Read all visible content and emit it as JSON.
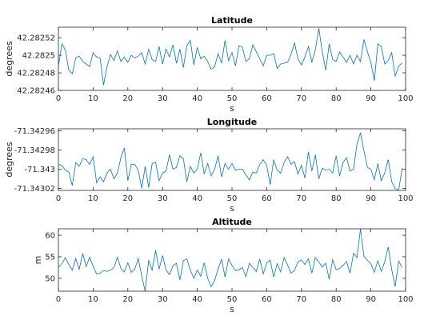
{
  "chart_data": [
    {
      "type": "line",
      "title": "Latitude",
      "xlabel": "s",
      "ylabel": "degrees",
      "xlim": [
        0,
        100
      ],
      "ylim": [
        42.28246,
        42.282532
      ],
      "xticks": [
        0,
        10,
        20,
        30,
        40,
        50,
        60,
        70,
        80,
        90,
        100
      ],
      "xtick_labels": [
        "0",
        "10",
        "20",
        "30",
        "40",
        "50",
        "60",
        "70",
        "80",
        "90",
        "100"
      ],
      "yticks": [
        42.28246,
        42.28248,
        42.2825,
        42.28252
      ],
      "ytick_labels": [
        "42.28246",
        "42.28248",
        "42.2825",
        "42.28252"
      ],
      "grid": false,
      "x": [
        0,
        1,
        2,
        3,
        4,
        5,
        6,
        7,
        8,
        9,
        10,
        11,
        12,
        13,
        14,
        15,
        16,
        17,
        18,
        19,
        20,
        21,
        22,
        23,
        24,
        25,
        26,
        27,
        28,
        29,
        30,
        31,
        32,
        33,
        34,
        35,
        36,
        37,
        38,
        39,
        40,
        41,
        42,
        43,
        44,
        45,
        46,
        47,
        48,
        49,
        50,
        51,
        52,
        53,
        54,
        55,
        56,
        57,
        58,
        59,
        60,
        61,
        62,
        63,
        64,
        65,
        66,
        67,
        68,
        69,
        70,
        71,
        72,
        73,
        74,
        75,
        76,
        77,
        78,
        79,
        80,
        81,
        82,
        83,
        84,
        85,
        86,
        87,
        88,
        89,
        90,
        91,
        92,
        93,
        94,
        95,
        96,
        97,
        98,
        99
      ],
      "series": [
        {
          "color": "#0072BD",
          "values": [
            42.282487,
            42.282513,
            42.282506,
            42.282483,
            42.282479,
            42.282497,
            42.282499,
            42.282493,
            42.28249,
            42.282487,
            42.282503,
            42.282498,
            42.282497,
            42.282466,
            42.282487,
            42.282501,
            42.282494,
            42.282505,
            42.282493,
            42.282498,
            42.282492,
            42.2825,
            42.282497,
            42.282499,
            42.282503,
            42.28249,
            42.282507,
            42.282495,
            42.282493,
            42.28251,
            42.28249,
            42.282507,
            42.282498,
            42.282512,
            42.282491,
            42.282507,
            42.282486,
            42.282511,
            42.282517,
            42.282489,
            42.282509,
            42.282496,
            42.282499,
            42.282493,
            42.282484,
            42.282487,
            42.282502,
            42.282491,
            42.282517,
            42.282494,
            42.282503,
            42.282488,
            42.282511,
            42.282509,
            42.282493,
            42.282496,
            42.282512,
            42.282504,
            42.282496,
            42.282488,
            42.2825,
            42.2825,
            42.282502,
            42.282485,
            42.28249,
            42.282491,
            42.282492,
            42.282501,
            42.282514,
            42.282496,
            42.282489,
            42.282498,
            42.28251,
            42.282492,
            42.282506,
            42.282531,
            42.282504,
            42.282483,
            42.282513,
            42.282495,
            42.282493,
            42.282504,
            42.282498,
            42.282492,
            42.2825,
            42.28249,
            42.2825,
            42.282493,
            42.282518,
            42.282504,
            42.282492,
            42.282471,
            42.282513,
            42.28251,
            42.28249,
            42.282494,
            42.282503,
            42.282476,
            42.282488,
            42.282491
          ]
        }
      ]
    },
    {
      "type": "line",
      "title": "Longitude",
      "xlabel": "s",
      "ylabel": "degrees",
      "xlim": [
        0,
        100
      ],
      "ylim": [
        -71.343022,
        -71.342958
      ],
      "xticks": [
        0,
        10,
        20,
        30,
        40,
        50,
        60,
        70,
        80,
        90,
        100
      ],
      "xtick_labels": [
        "0",
        "10",
        "20",
        "30",
        "40",
        "50",
        "60",
        "70",
        "80",
        "90",
        "100"
      ],
      "yticks": [
        -71.34302,
        -71.343,
        -71.34298,
        -71.34296
      ],
      "ytick_labels": [
        "-71.34302",
        "-71.343",
        "-71.34298",
        "-71.34296"
      ],
      "grid": false,
      "x": [
        0,
        1,
        2,
        3,
        4,
        5,
        6,
        7,
        8,
        9,
        10,
        11,
        12,
        13,
        14,
        15,
        16,
        17,
        18,
        19,
        20,
        21,
        22,
        23,
        24,
        25,
        26,
        27,
        28,
        29,
        30,
        31,
        32,
        33,
        34,
        35,
        36,
        37,
        38,
        39,
        40,
        41,
        42,
        43,
        44,
        45,
        46,
        47,
        48,
        49,
        50,
        51,
        52,
        53,
        54,
        55,
        56,
        57,
        58,
        59,
        60,
        61,
        62,
        63,
        64,
        65,
        66,
        67,
        68,
        69,
        70,
        71,
        72,
        73,
        74,
        75,
        76,
        77,
        78,
        79,
        80,
        81,
        82,
        83,
        84,
        85,
        86,
        87,
        88,
        89,
        90,
        91,
        92,
        93,
        94,
        95,
        96,
        97,
        98,
        99
      ],
      "series": [
        {
          "color": "#0072BD",
          "values": [
            -71.342995,
            -71.342996,
            -71.343001,
            -71.343003,
            -71.343017,
            -71.342993,
            -71.342997,
            -71.342989,
            -71.34299,
            -71.342995,
            -71.342987,
            -71.343014,
            -71.343008,
            -71.343013,
            -71.343004,
            -71.343,
            -71.34301,
            -71.343004,
            -71.342988,
            -71.342978,
            -71.343012,
            -71.342995,
            -71.342995,
            -71.343001,
            -71.34302,
            -71.342997,
            -71.343019,
            -71.342994,
            -71.342993,
            -71.343012,
            -71.343004,
            -71.343002,
            -71.342985,
            -71.343,
            -71.342998,
            -71.342986,
            -71.342989,
            -71.343013,
            -71.342997,
            -71.343004,
            -71.343,
            -71.342983,
            -71.343005,
            -71.342994,
            -71.343007,
            -71.343,
            -71.342986,
            -71.343008,
            -71.342994,
            -71.343,
            -71.342994,
            -71.343001,
            -71.343,
            -71.343,
            -71.343006,
            -71.343011,
            -71.343003,
            -71.343004,
            -71.342995,
            -71.34299,
            -71.342996,
            -71.343016,
            -71.34299,
            -71.343001,
            -71.343004,
            -71.342993,
            -71.342987,
            -71.342995,
            -71.342992,
            -71.343005,
            -71.342996,
            -71.343009,
            -71.342982,
            -71.343002,
            -71.342985,
            -71.34301,
            -71.342999,
            -71.343001,
            -71.343,
            -71.343004,
            -71.342986,
            -71.343007,
            -71.342993,
            -71.342988,
            -71.343002,
            -71.343,
            -71.342974,
            -71.342962,
            -71.342981,
            -71.342998,
            -71.343,
            -71.343011,
            -71.342994,
            -71.343012,
            -71.343004,
            -71.34299,
            -71.343013,
            -71.34302,
            -71.343022,
            -71.342999
          ]
        }
      ]
    },
    {
      "type": "line",
      "title": "Altitude",
      "xlabel": "s",
      "ylabel": "m",
      "xlim": [
        0,
        100
      ],
      "ylim": [
        47,
        61.5
      ],
      "xticks": [
        0,
        10,
        20,
        30,
        40,
        50,
        60,
        70,
        80,
        90,
        100
      ],
      "xtick_labels": [
        "0",
        "10",
        "20",
        "30",
        "40",
        "50",
        "60",
        "70",
        "80",
        "90",
        "100"
      ],
      "yticks": [
        50,
        55,
        60
      ],
      "ytick_labels": [
        "50",
        "55",
        "60"
      ],
      "grid": false,
      "x": [
        0,
        1,
        2,
        3,
        4,
        5,
        6,
        7,
        8,
        9,
        10,
        11,
        12,
        13,
        14,
        15,
        16,
        17,
        18,
        19,
        20,
        21,
        22,
        23,
        24,
        25,
        26,
        27,
        28,
        29,
        30,
        31,
        32,
        33,
        34,
        35,
        36,
        37,
        38,
        39,
        40,
        41,
        42,
        43,
        44,
        45,
        46,
        47,
        48,
        49,
        50,
        51,
        52,
        53,
        54,
        55,
        56,
        57,
        58,
        59,
        60,
        61,
        62,
        63,
        64,
        65,
        66,
        67,
        68,
        69,
        70,
        71,
        72,
        73,
        74,
        75,
        76,
        77,
        78,
        79,
        80,
        81,
        82,
        83,
        84,
        85,
        86,
        87,
        88,
        89,
        90,
        91,
        92,
        93,
        94,
        95,
        96,
        97,
        98,
        99
      ],
      "series": [
        {
          "color": "#0072BD",
          "values": [
            52.5,
            53.4,
            54.8,
            53.2,
            51.9,
            54.6,
            52.1,
            55.8,
            52.7,
            54.9,
            52.8,
            51.0,
            51.2,
            51.8,
            51.6,
            51.9,
            52.5,
            54.9,
            52.3,
            51.5,
            53.6,
            51.4,
            52.1,
            54.6,
            50.5,
            47.0,
            54.2,
            51.9,
            56.5,
            52.1,
            55.3,
            52.0,
            50.8,
            52.9,
            53.5,
            49.6,
            54.1,
            54.5,
            51.9,
            50.0,
            51.9,
            50.5,
            53.6,
            50.0,
            48.0,
            49.5,
            52.2,
            54.4,
            50.3,
            54.5,
            53.0,
            51.8,
            52.0,
            52.5,
            50.4,
            53.5,
            52.5,
            51.6,
            54.5,
            51.0,
            53.6,
            54.2,
            50.3,
            53.4,
            51.5,
            54.8,
            53.1,
            51.2,
            51.8,
            53.8,
            54.3,
            53.2,
            54.5,
            51.2,
            54.8,
            53.8,
            52.6,
            53.5,
            49.8,
            54.3,
            52.0,
            52.3,
            53.0,
            53.9,
            51.2,
            55.8,
            54.8,
            61.5,
            55.1,
            54.2,
            53.4,
            51.4,
            54.1,
            51.6,
            53.9,
            57.3,
            52.0,
            48.1,
            54.0,
            52.5
          ]
        }
      ]
    }
  ]
}
